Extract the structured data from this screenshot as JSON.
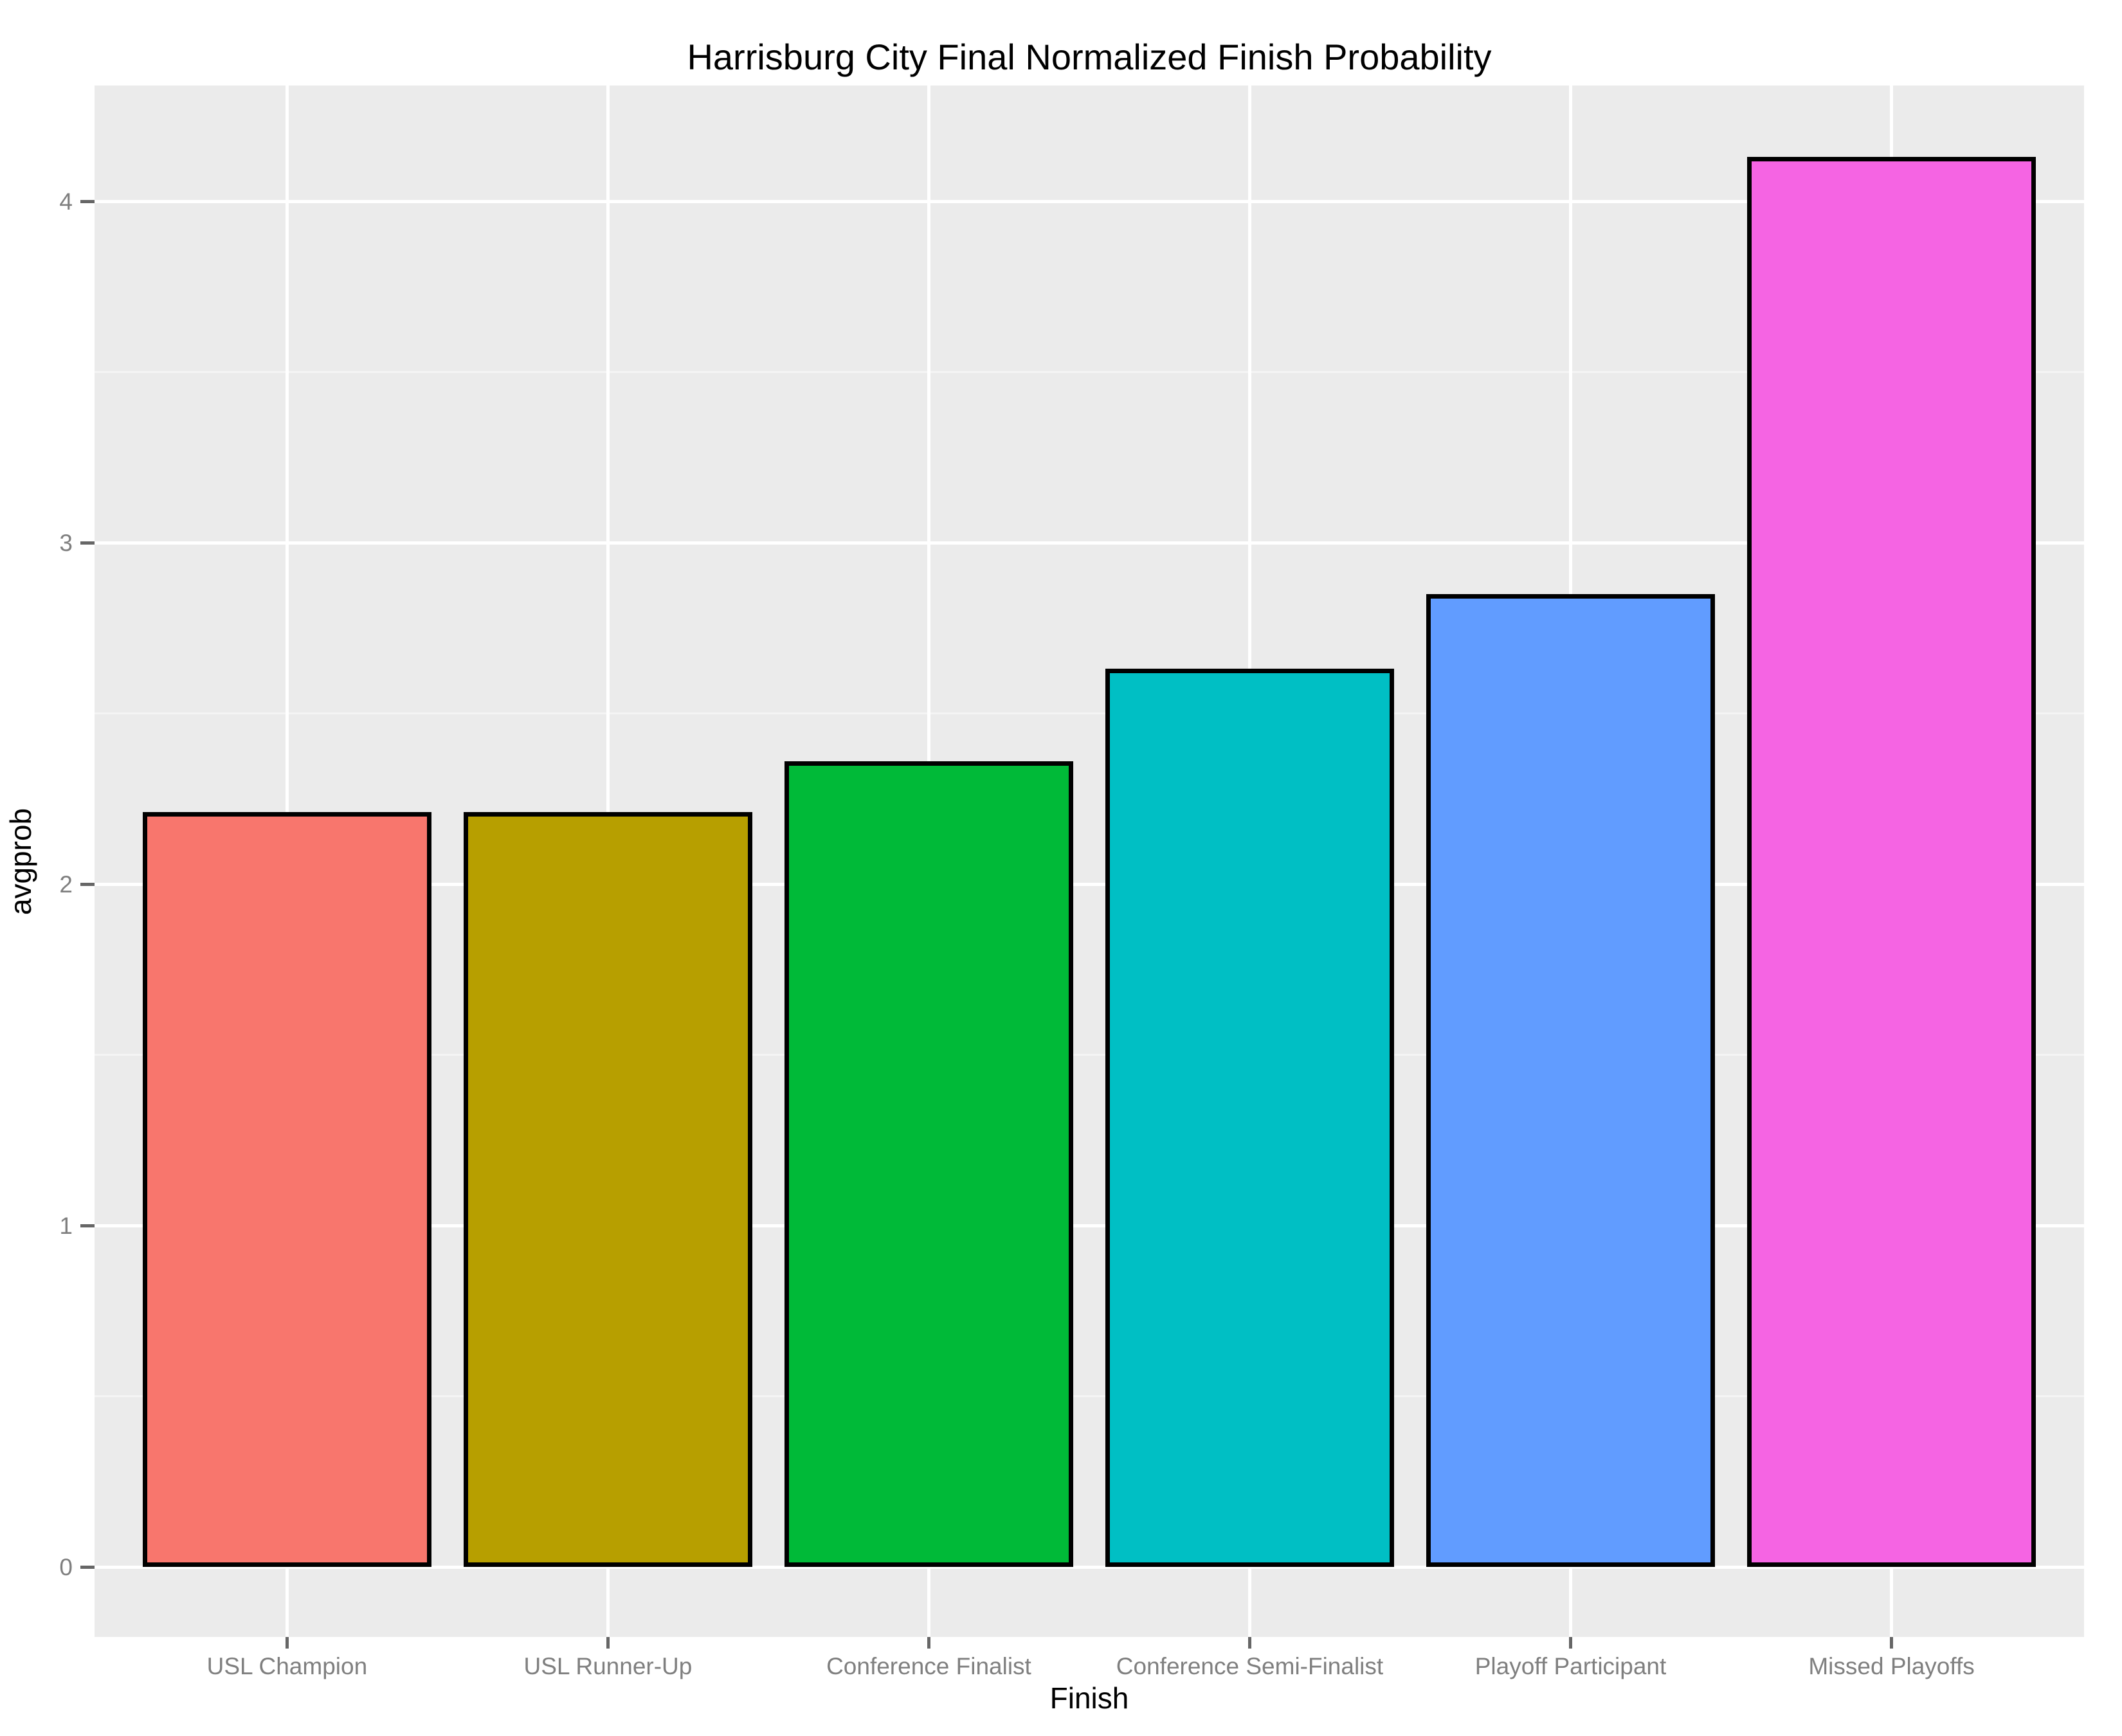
{
  "figure": {
    "title": "Harrisburg City Final Normalized Finish Probability"
  },
  "chart_data": {
    "type": "bar",
    "title": "Harrisburg City Final Normalized Finish Probability",
    "xlabel": "Finish",
    "ylabel": "avgprob",
    "categories": [
      "USL Champion",
      "USL Runner-Up",
      "Conference Finalist",
      "Conference Semi-Finalist",
      "Playoff Participant",
      "Missed Playoffs"
    ],
    "values": [
      2.21,
      2.21,
      2.36,
      2.63,
      2.85,
      4.13
    ],
    "bar_colors": [
      "#F8766D",
      "#B79F00",
      "#00BA38",
      "#00BFC4",
      "#619CFF",
      "#F564E3"
    ],
    "bar_outline_color": "#000000",
    "yticks": [
      "0",
      "1",
      "2",
      "3",
      "4"
    ],
    "ytick_values": [
      0,
      1,
      2,
      3,
      4
    ],
    "ylim": [
      -0.21,
      4.34
    ],
    "grid": "major-white, minor-faint, on gray panel",
    "panel_background": "#EBEBEB",
    "gridline_color": "#FFFFFF",
    "legend": "none",
    "tick_label_color": "#7F7F7F",
    "text_color": "#000000"
  }
}
